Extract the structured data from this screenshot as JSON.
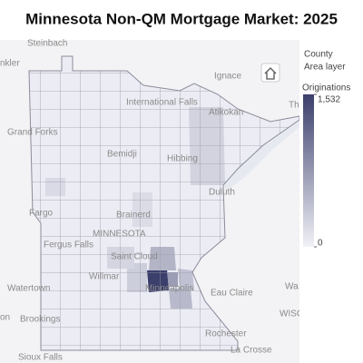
{
  "title": "Minnesota Non-QM Mortgage Market: 2025",
  "legend": {
    "layer": "County",
    "layer_type": "Area layer",
    "measure": "Originations",
    "range": [
      0,
      1532
    ],
    "ticks": [
      {
        "value": 1532,
        "label": "1,532"
      },
      0
    ],
    "colors": [
      "#f1f1f7",
      "#3b3f6b"
    ]
  },
  "regions": {
    "values": [
      1532,
      720,
      480,
      520,
      410,
      260,
      300,
      180,
      240,
      200
    ]
  },
  "places": [
    "Steinbach",
    "nkler",
    "Ignace",
    "Atikokan",
    "International Falls",
    "The",
    "Grand Forks",
    "Bemidji",
    "Hibbing",
    "Duluth",
    "Fargo",
    "Fergus Falls",
    "Brainerd",
    "MINNESOTA",
    "Saint Cloud",
    "Willmar",
    "Minneapolis",
    "Eau Claire",
    "Wa",
    "Watertown",
    "Brookings",
    "WISCO",
    "Rochester",
    "Sioux Falls",
    "La Crosse",
    "on"
  ]
}
